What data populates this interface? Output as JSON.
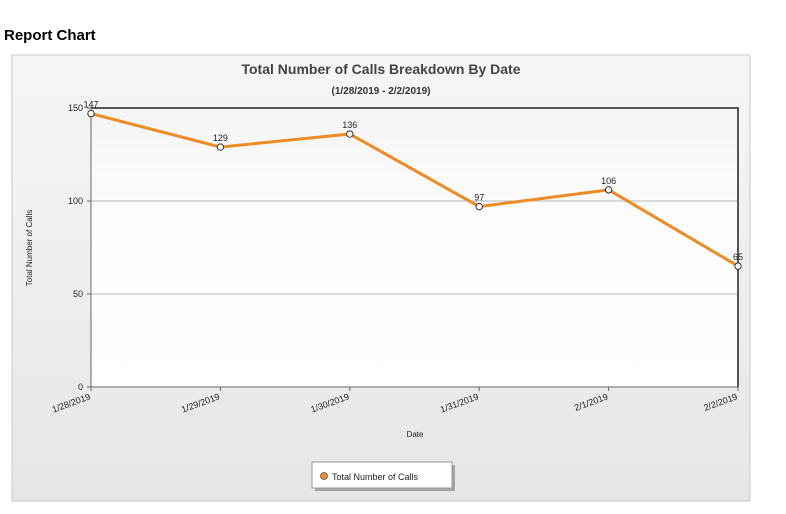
{
  "page": {
    "heading": "Report Chart"
  },
  "chart_data": {
    "type": "line",
    "title": "Total Number of Calls Breakdown By Date",
    "subtitle": "(1/28/2019 - 2/2/2019)",
    "xlabel": "Date",
    "ylabel": "Total Number of Calls",
    "categories": [
      "1/28/2019",
      "1/29/2019",
      "1/30/2019",
      "1/31/2019",
      "2/1/2019",
      "2/2/2019"
    ],
    "series": [
      {
        "name": "Total Number of Calls",
        "values": [
          147,
          129,
          136,
          97,
          106,
          65
        ],
        "color": "#f08a24"
      }
    ],
    "ylim": [
      0,
      150
    ],
    "yticks": [
      0,
      50,
      100,
      150
    ],
    "grid": true,
    "data_labels": true,
    "legend_position": "bottom-center"
  }
}
